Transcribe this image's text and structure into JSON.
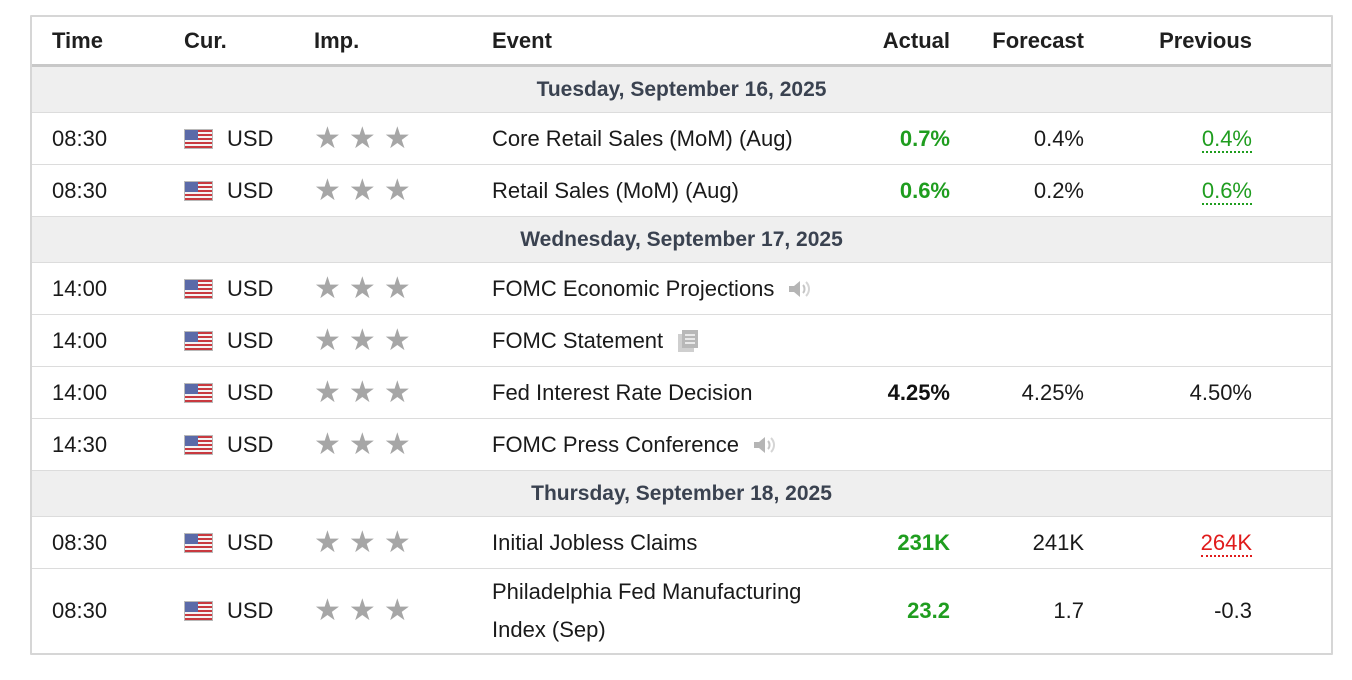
{
  "headers": {
    "time": "Time",
    "cur": "Cur.",
    "imp": "Imp.",
    "event": "Event",
    "actual": "Actual",
    "forecast": "Forecast",
    "previous": "Previous"
  },
  "days": [
    {
      "label": "Tuesday, September 16, 2025",
      "events": [
        {
          "time": "08:30",
          "currency": "USD",
          "event": "Core Retail Sales (MoM) (Aug)",
          "actual": "0.7%",
          "forecast": "0.4%",
          "previous": "0.4%"
        },
        {
          "time": "08:30",
          "currency": "USD",
          "event": "Retail Sales (MoM) (Aug)",
          "actual": "0.6%",
          "forecast": "0.2%",
          "previous": "0.6%"
        }
      ]
    },
    {
      "label": "Wednesday, September 17, 2025",
      "events": [
        {
          "time": "14:00",
          "currency": "USD",
          "event": "FOMC Economic Projections",
          "icon": "speaker-icon"
        },
        {
          "time": "14:00",
          "currency": "USD",
          "event": "FOMC Statement",
          "icon": "document-icon"
        },
        {
          "time": "14:00",
          "currency": "USD",
          "event": "Fed Interest Rate Decision",
          "actual": "4.25%",
          "forecast": "4.25%",
          "previous": "4.50%"
        },
        {
          "time": "14:30",
          "currency": "USD",
          "event": "FOMC Press Conference",
          "icon": "speaker-icon"
        }
      ]
    },
    {
      "label": "Thursday, September 18, 2025",
      "events": [
        {
          "time": "08:30",
          "currency": "USD",
          "event": "Initial Jobless Claims",
          "actual": "231K",
          "forecast": "241K",
          "previous": "264K"
        },
        {
          "time": "08:30",
          "currency": "USD",
          "event_line1": "Philadelphia Fed Manufacturing",
          "event_line2": "Index (Sep)",
          "actual": "23.2",
          "forecast": "1.7",
          "previous": "-0.3"
        }
      ]
    }
  ],
  "colors": {
    "positive": "#1f9d1f",
    "negative": "#e01b1b",
    "star": "#a6a6a6",
    "day_bg": "#efefef"
  }
}
